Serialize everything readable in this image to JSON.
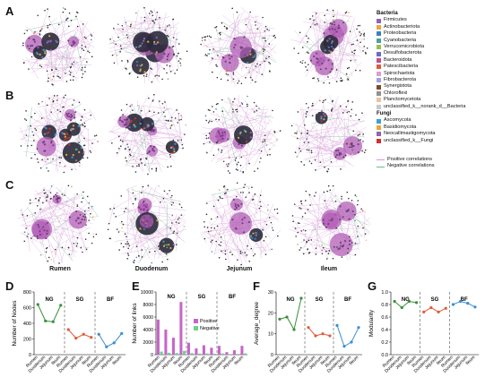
{
  "panels": {
    "A": "A",
    "B": "B",
    "C": "C",
    "D": "D",
    "E": "E",
    "F": "F",
    "G": "G"
  },
  "columns": [
    "Rumen",
    "Duodenum",
    "Jejunum",
    "Ileum"
  ],
  "legend_bacteria": {
    "title": "Bacteria",
    "items": [
      {
        "label": "Firmicutes",
        "color": "#8e63b8"
      },
      {
        "label": "Actinobacteriota",
        "color": "#e8a838"
      },
      {
        "label": "Proteobacteria",
        "color": "#3f7fc0"
      },
      {
        "label": "Cyanobacteria",
        "color": "#4aa0a0"
      },
      {
        "label": "Verrucomicrobiota",
        "color": "#9bc04a"
      },
      {
        "label": "Desulfobacterota",
        "color": "#6a6ad0"
      },
      {
        "label": "Bacteroidota",
        "color": "#c05090"
      },
      {
        "label": "Patescibacteria",
        "color": "#e05a3a"
      },
      {
        "label": "Spirochaetota",
        "color": "#d9a0d0"
      },
      {
        "label": "Fibrobacterota",
        "color": "#a0a0e0"
      },
      {
        "label": "Synergistota",
        "color": "#7a4a2a"
      },
      {
        "label": "Chloroflexi",
        "color": "#909090"
      },
      {
        "label": "Planctomycetota",
        "color": "#f0c0a0"
      },
      {
        "label": "unclassified_k__norank_d__Bacteria",
        "color": "#c8c8c8"
      }
    ]
  },
  "legend_fungi": {
    "title": "Fungi",
    "items": [
      {
        "label": "Ascomycota",
        "color": "#3f9fd0"
      },
      {
        "label": "Basidiomycota",
        "color": "#e8a838"
      },
      {
        "label": "Neocallimastigomycota",
        "color": "#8e63b8"
      },
      {
        "label": "unclassified_k__Fungi",
        "color": "#d03030"
      }
    ]
  },
  "legend_corr": {
    "items": [
      {
        "label": "Positive correlations",
        "color": "#d59ad6"
      },
      {
        "label": "Negative correlations",
        "color": "#5fbf8f"
      }
    ]
  },
  "chart_data": [
    {
      "id": "D",
      "type": "line",
      "ylabel": "Number of Nodes",
      "ylim": [
        0,
        800
      ],
      "yticks": [
        "0",
        "200",
        "400",
        "600",
        "800"
      ],
      "groups": [
        {
          "name": "NG",
          "color": "#3a8f3a",
          "categories": [
            "Rumen",
            "Duodenum",
            "Jejunum",
            "Ileum"
          ],
          "values": [
            640,
            430,
            420,
            630
          ]
        },
        {
          "name": "SG",
          "color": "#e05a3a",
          "categories": [
            "Rumen",
            "Duodenum",
            "Jejunum",
            "Ileum"
          ],
          "values": [
            320,
            210,
            260,
            220
          ]
        },
        {
          "name": "BF",
          "color": "#3a8fd0",
          "categories": [
            "Rumen",
            "Duodenum",
            "Jejunum",
            "Ileum"
          ],
          "values": [
            260,
            100,
            150,
            270
          ]
        }
      ]
    },
    {
      "id": "E",
      "type": "bar",
      "ylabel": "Number of links",
      "ylim": [
        0,
        10000
      ],
      "yticks": [
        "0",
        "2000",
        "4000",
        "6000",
        "8000",
        "10000"
      ],
      "series": [
        {
          "name": "Positive",
          "color": "#c765c8"
        },
        {
          "name": "Negative",
          "color": "#6fcf8f"
        }
      ],
      "groups": [
        {
          "name": "NG",
          "categories": [
            "Rumen",
            "Duodenum",
            "Jejunum",
            "Ileum"
          ],
          "positive": [
            5600,
            4000,
            2700,
            8400
          ],
          "negative": [
            500,
            300,
            250,
            600
          ]
        },
        {
          "name": "SG",
          "categories": [
            "Rumen",
            "Duodenum",
            "Jejunum",
            "Ileum"
          ],
          "positive": [
            1900,
            1000,
            1500,
            1100
          ],
          "negative": [
            250,
            180,
            200,
            150
          ]
        },
        {
          "name": "BF",
          "categories": [
            "Rumen",
            "Duodenum",
            "Jejunum",
            "Ileum"
          ],
          "positive": [
            1400,
            400,
            700,
            1400
          ],
          "negative": [
            200,
            80,
            120,
            200
          ]
        }
      ]
    },
    {
      "id": "F",
      "type": "line",
      "ylabel": "Average_degree",
      "ylim": [
        0,
        30
      ],
      "yticks": [
        "0",
        "10",
        "20",
        "30"
      ],
      "groups": [
        {
          "name": "NG",
          "color": "#3a8f3a",
          "categories": [
            "Rumen",
            "Duodenum",
            "Jejunum",
            "Ileum"
          ],
          "values": [
            17,
            18,
            12,
            27
          ]
        },
        {
          "name": "SG",
          "color": "#e05a3a",
          "categories": [
            "Rumen",
            "Duodenum",
            "Jejunum",
            "Ileum"
          ],
          "values": [
            13,
            9,
            10,
            9
          ]
        },
        {
          "name": "BF",
          "color": "#3a8fd0",
          "categories": [
            "Rumen",
            "Duodenum",
            "Jejunum",
            "Ileum"
          ],
          "values": [
            14,
            4,
            6,
            13
          ]
        }
      ]
    },
    {
      "id": "G",
      "type": "line",
      "ylabel": "Modularity",
      "ylim": [
        0.0,
        1.0
      ],
      "yticks": [
        "0.0",
        "0.2",
        "0.4",
        "0.6",
        "0.8",
        "1.0"
      ],
      "groups": [
        {
          "name": "NG",
          "color": "#3a8f3a",
          "categories": [
            "Rumen",
            "Duodenum",
            "Jejunum",
            "Ileum"
          ],
          "values": [
            0.85,
            0.75,
            0.85,
            0.83
          ]
        },
        {
          "name": "SG",
          "color": "#e05a3a",
          "categories": [
            "Rumen",
            "Duodenum",
            "Jejunum",
            "Ileum"
          ],
          "values": [
            0.68,
            0.75,
            0.68,
            0.74
          ]
        },
        {
          "name": "BF",
          "color": "#3a8fd0",
          "categories": [
            "Rumen",
            "Duodenum",
            "Jejunum",
            "Ileum"
          ],
          "values": [
            0.8,
            0.85,
            0.82,
            0.76
          ]
        }
      ]
    }
  ]
}
